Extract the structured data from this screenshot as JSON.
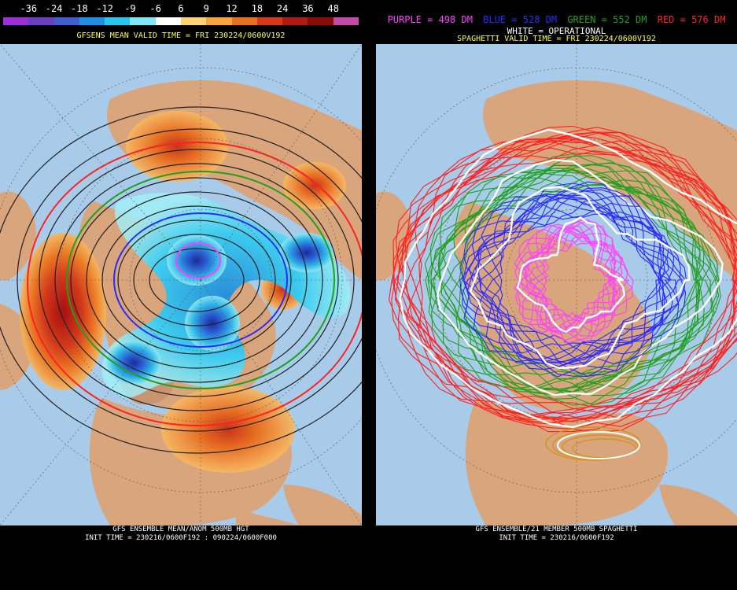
{
  "left": {
    "colorbar_labels": [
      "-36",
      "-24",
      "-18",
      "-12",
      "-9",
      "-6",
      "6",
      "9",
      "12",
      "18",
      "24",
      "36",
      "48"
    ],
    "colorbar_colors": [
      "#9b30d6",
      "#6a40c0",
      "#3f5fd0",
      "#1f8fe6",
      "#27c6ea",
      "#7fe8f4",
      "#ffffff",
      "#ffd27a",
      "#f7a53a",
      "#e8701f",
      "#d5391a",
      "#b01a12",
      "#8b0b0b",
      "#c44aa8"
    ],
    "title": "GFSENS MEAN VALID TIME = FRI 230224/0600V192",
    "footer_line1": "GFS ENSEMBLE MEAN/ANOM 500MB HGT",
    "footer_line2": "INIT TIME = 230216/0600F192 : 090224/0600F000"
  },
  "right": {
    "legend": [
      {
        "text": "PURPLE = 498 DM",
        "color": "#ff40ff"
      },
      {
        "text": "BLUE = 528 DM",
        "color": "#2a2aff"
      },
      {
        "text": "GREEN = 552 DM",
        "color": "#1fa01f"
      },
      {
        "text": "RED = 576 DM",
        "color": "#ff2020"
      }
    ],
    "legend_white": "WHITE = OPERATIONAL",
    "title": "SPAGHETTI VALID TIME = FRI 230224/0600V192",
    "footer_line1": "GFS ENSEMBLE/21 MEMBER 500MB SPAGHETTI",
    "footer_line2": "INIT TIME = 230216/0600F192"
  },
  "colors": {
    "ocean": "#a9cbea",
    "land": "#d9a57c",
    "title_yellow": "#ffff30",
    "contour": "#202020"
  }
}
